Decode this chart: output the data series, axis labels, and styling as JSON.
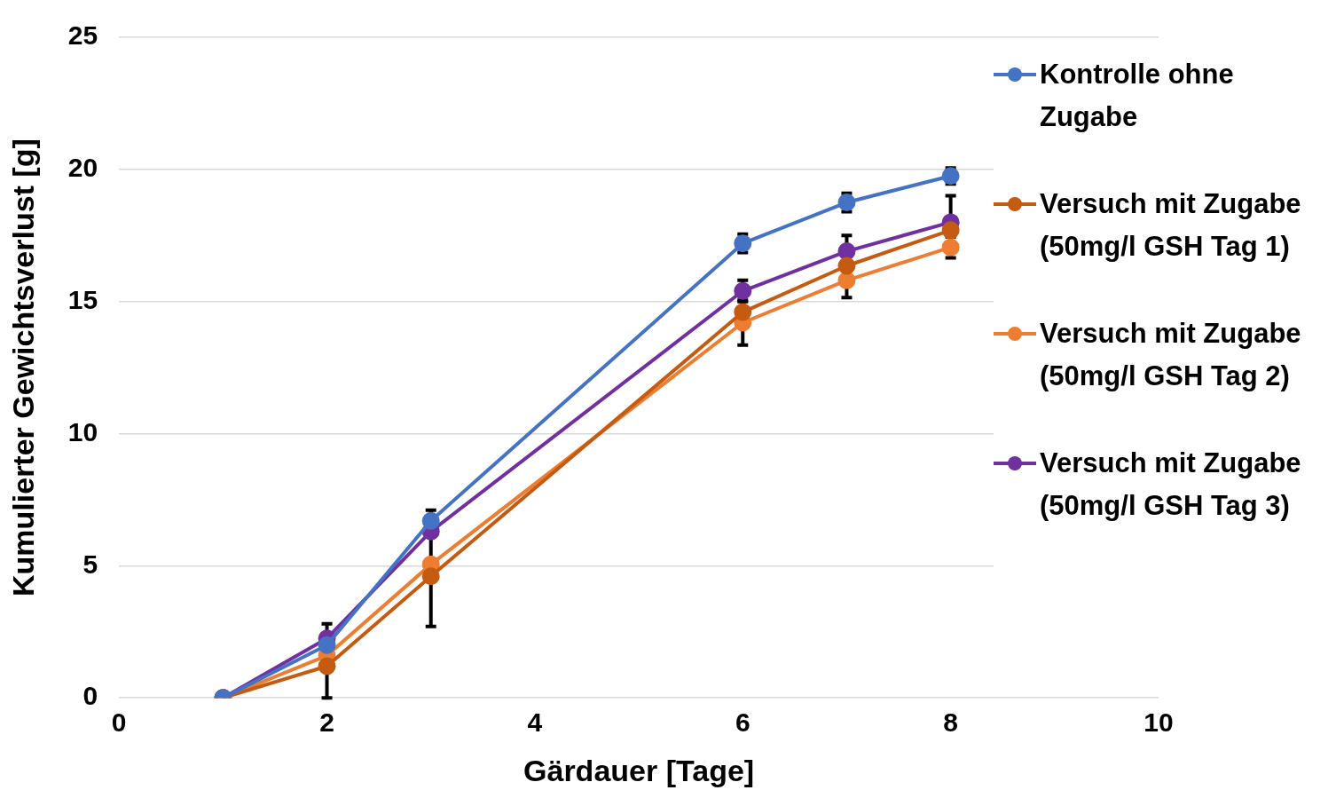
{
  "chart_data": {
    "type": "line",
    "xlabel": "Gärdauer [Tage]",
    "ylabel": "Kumulierter Gewichtsverlust [g]",
    "x": [
      1,
      2,
      3,
      6,
      7,
      8
    ],
    "series": [
      {
        "name": "Kontrolle ohne Zugabe",
        "color": "#4472c4",
        "values": [
          0,
          2.0,
          6.7,
          17.2,
          18.75,
          19.75
        ],
        "errors": [
          null,
          null,
          0.4,
          0.35,
          0.35,
          0.3
        ]
      },
      {
        "name": "Versuch mit Zugabe (50mg/l GSH Tag 1)",
        "color": "#c55a11",
        "values": [
          0,
          1.2,
          4.6,
          14.6,
          16.35,
          17.7
        ],
        "errors": [
          null,
          [
            0,
            2.8
          ],
          1.9,
          null,
          null,
          null
        ]
      },
      {
        "name": "Versuch mit Zugabe (50mg/l GSH Tag 2)",
        "color": "#ed7d31",
        "values": [
          0,
          1.6,
          5.05,
          14.2,
          15.8,
          17.05
        ],
        "errors": [
          null,
          null,
          null,
          0.85,
          0.65,
          0.4
        ]
      },
      {
        "name": "Versuch mit Zugabe (50mg/l GSH Tag 3)",
        "color": "#7030a0",
        "values": [
          0,
          2.25,
          6.3,
          15.4,
          16.9,
          18.0
        ],
        "errors": [
          null,
          null,
          null,
          0.4,
          0.6,
          1.0
        ]
      }
    ],
    "xlim": [
      0,
      10
    ],
    "xticks": [
      0,
      2,
      4,
      6,
      8,
      10
    ],
    "ylim": [
      0,
      25
    ],
    "yticks": [
      0,
      5,
      10,
      15,
      20,
      25
    ],
    "grid": "y",
    "legend": "right",
    "marker": "circle",
    "line_style": "solid"
  }
}
